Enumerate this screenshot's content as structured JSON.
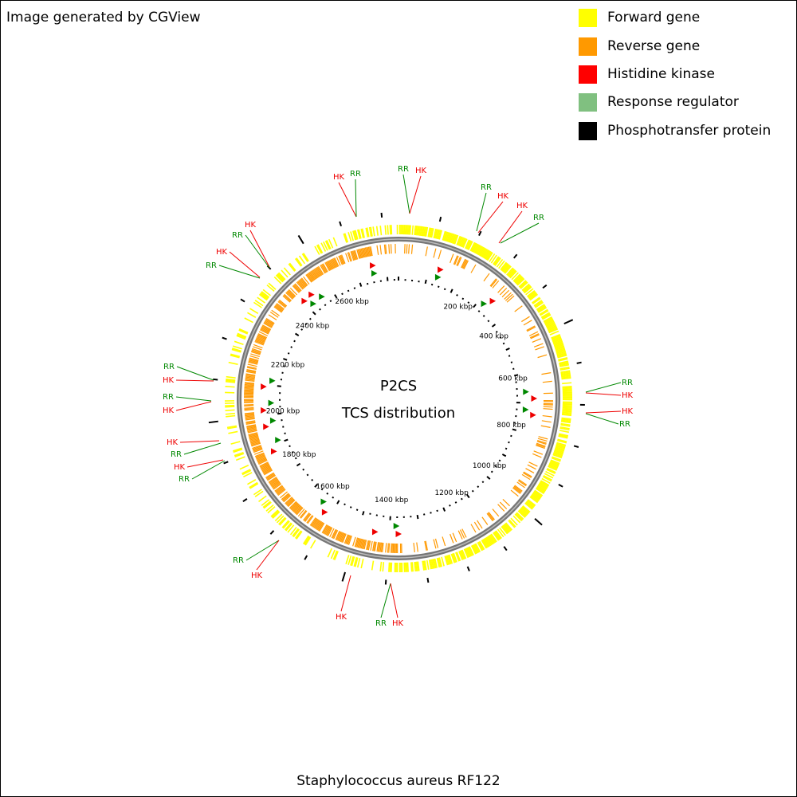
{
  "header": {
    "title": "Image generated by CGView"
  },
  "legend": [
    {
      "label": "Forward gene",
      "color": "#ffff00"
    },
    {
      "label": "Reverse gene",
      "color": "#ff9900"
    },
    {
      "label": "Histidine kinase",
      "color": "#ff0000"
    },
    {
      "label": "Response regulator",
      "color": "#80c080"
    },
    {
      "label": "Phosphotransfer protein",
      "color": "#000000"
    }
  ],
  "center": {
    "title": "P2CS",
    "subtitle": "TCS distribution"
  },
  "caption": "Staphylococcus aureus RF122",
  "position_labels": [
    "200 kbp",
    "400 kbp",
    "600 kbp",
    "800 kbp",
    "1000 kbp",
    "1200 kbp",
    "1400 kbp",
    "1600 kbp",
    "1800 kbp",
    "2000 kbp",
    "2200 kbp",
    "2400 kbp",
    "2600 kbp"
  ],
  "features": [
    {
      "label": "HK"
    },
    {
      "label": "RR"
    },
    {
      "label": "RR"
    },
    {
      "label": "HK"
    },
    {
      "label": "RR"
    },
    {
      "label": "HK"
    },
    {
      "label": "HK"
    },
    {
      "label": "RR"
    },
    {
      "label": "RR"
    },
    {
      "label": "HK"
    },
    {
      "label": "HK"
    },
    {
      "label": "RR"
    },
    {
      "label": "RR"
    },
    {
      "label": "HK"
    },
    {
      "label": "HK"
    },
    {
      "label": "RR"
    },
    {
      "label": "HK"
    },
    {
      "label": "RR"
    },
    {
      "label": "HK"
    },
    {
      "label": "RR"
    },
    {
      "label": "HK"
    },
    {
      "label": "HK"
    },
    {
      "label": "RR"
    },
    {
      "label": "HK"
    },
    {
      "label": "RR"
    },
    {
      "label": "HK"
    },
    {
      "label": "RR"
    },
    {
      "label": "HK"
    },
    {
      "label": "RR"
    }
  ]
}
